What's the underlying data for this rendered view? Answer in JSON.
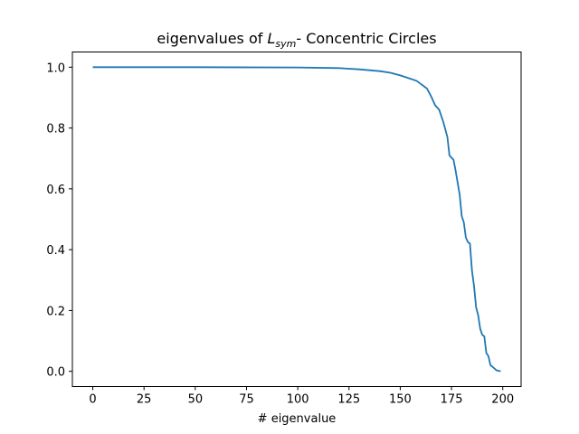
{
  "chart_data": {
    "type": "line",
    "title_parts": [
      "eigenvalues of ",
      "L",
      "sym",
      "- Concentric Circles"
    ],
    "xlabel": "# eigenvalue",
    "x": [
      0,
      50,
      100,
      120,
      130,
      140,
      145,
      150,
      155,
      158,
      160,
      163,
      165,
      167,
      169,
      171,
      173,
      174,
      176,
      177,
      179,
      180,
      181,
      182,
      183,
      184,
      185,
      186,
      187,
      188,
      189,
      190,
      191,
      192,
      193,
      194,
      195,
      197,
      199
    ],
    "series": [
      {
        "color": "#1f77b4",
        "values": [
          1.0,
          1.0,
          0.999,
          0.997,
          0.993,
          0.987,
          0.982,
          0.973,
          0.962,
          0.955,
          0.945,
          0.93,
          0.905,
          0.875,
          0.86,
          0.82,
          0.77,
          0.71,
          0.695,
          0.66,
          0.58,
          0.51,
          0.49,
          0.44,
          0.425,
          0.42,
          0.33,
          0.28,
          0.21,
          0.185,
          0.14,
          0.12,
          0.115,
          0.06,
          0.05,
          0.02,
          0.015,
          0.003,
          0.0
        ]
      }
    ],
    "xlim": [
      -9.95,
      208.95
    ],
    "ylim": [
      -0.05,
      1.05
    ],
    "xticks": [
      0,
      25,
      50,
      75,
      100,
      125,
      150,
      175,
      200
    ],
    "yticks": [
      {
        "value": 0,
        "label": "0.0"
      },
      0.2,
      0.4,
      0.6,
      0.8,
      {
        "value": 1,
        "label": "1.0"
      }
    ],
    "grid": false
  }
}
